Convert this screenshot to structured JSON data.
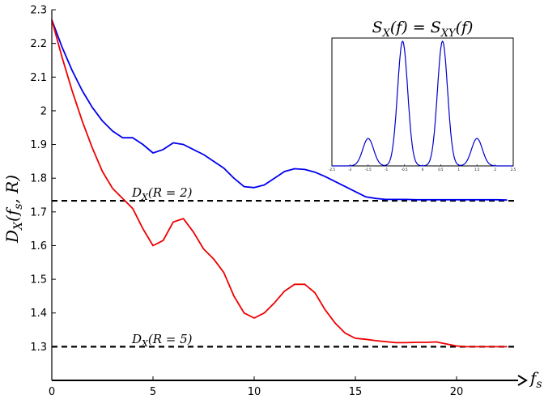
{
  "chart_data": {
    "type": "line",
    "main": {
      "xlabel": "f_s",
      "ylabel": "D_X(f_s, R)",
      "xlim": [
        0,
        22.8
      ],
      "ylim": [
        1.2,
        2.3
      ],
      "xticks": [
        0,
        5,
        10,
        15,
        20
      ],
      "yticks": [
        1.3,
        1.4,
        1.5,
        1.6,
        1.7,
        1.8,
        1.9,
        2.0,
        2.1,
        2.2,
        2.3
      ],
      "series": [
        {
          "color": "#0000ee",
          "x": [
            0,
            0.5,
            1,
            1.5,
            2,
            2.5,
            3,
            3.5,
            4,
            4.5,
            5,
            5.5,
            6,
            6.5,
            7,
            7.5,
            8,
            8.5,
            9,
            9.5,
            10,
            10.5,
            11,
            11.5,
            12,
            12.5,
            13,
            13.5,
            14,
            14.5,
            15,
            15.5,
            16,
            16.5,
            17,
            17.5,
            18,
            18.5,
            19,
            19.5,
            20,
            20.5,
            21,
            21.5,
            22,
            22.5
          ],
          "y": [
            2.27,
            2.19,
            2.12,
            2.06,
            2.01,
            1.97,
            1.94,
            1.92,
            1.92,
            1.9,
            1.875,
            1.885,
            1.905,
            1.9,
            1.885,
            1.87,
            1.85,
            1.83,
            1.8,
            1.775,
            1.772,
            1.78,
            1.8,
            1.82,
            1.828,
            1.826,
            1.818,
            1.805,
            1.79,
            1.775,
            1.76,
            1.745,
            1.74,
            1.737,
            1.737,
            1.737,
            1.736,
            1.736,
            1.736,
            1.736,
            1.736,
            1.736,
            1.736,
            1.736,
            1.736,
            1.735
          ]
        },
        {
          "color": "#ee0000",
          "x": [
            0,
            0.5,
            1,
            1.5,
            2,
            2.5,
            3,
            3.5,
            4,
            4.5,
            5,
            5.5,
            6,
            6.5,
            7,
            7.5,
            8,
            8.5,
            9,
            9.5,
            10,
            10.5,
            11,
            11.5,
            12,
            12.5,
            13,
            13.5,
            14,
            14.5,
            15,
            15.5,
            16,
            16.5,
            17,
            17.5,
            18,
            18.5,
            19,
            19.5,
            20,
            20.5,
            21,
            21.5,
            22,
            22.5
          ],
          "y": [
            2.27,
            2.16,
            2.06,
            1.97,
            1.89,
            1.82,
            1.77,
            1.74,
            1.71,
            1.65,
            1.6,
            1.615,
            1.67,
            1.68,
            1.64,
            1.59,
            1.56,
            1.52,
            1.45,
            1.4,
            1.385,
            1.4,
            1.43,
            1.465,
            1.485,
            1.485,
            1.46,
            1.41,
            1.37,
            1.34,
            1.325,
            1.322,
            1.318,
            1.315,
            1.312,
            1.312,
            1.313,
            1.313,
            1.314,
            1.308,
            1.302,
            1.3,
            1.3,
            1.3,
            1.3,
            1.3
          ]
        }
      ],
      "hlines": [
        {
          "y": 1.733,
          "label": "D_X(R = 2)"
        },
        {
          "y": 1.3,
          "label": "D_X(R = 5)"
        }
      ]
    },
    "inset": {
      "title": "S_X(f) = S_XY(f)",
      "xlim": [
        -2.5,
        2.5
      ],
      "ylim": [
        0,
        1
      ],
      "xticks": [
        -2.5,
        -2,
        -1.5,
        -1,
        -0.5,
        0,
        0.5,
        1,
        1.5,
        2,
        2.5
      ],
      "xtick_labels": [
        "-2.5",
        "-2",
        "-1.5",
        "-1",
        "-0.5",
        "0",
        "0.5",
        "1",
        "1.5",
        "2",
        "2.5"
      ],
      "color": "#0000cc",
      "peaks": [
        {
          "x": -1.5,
          "height": 0.22,
          "width": 0.15
        },
        {
          "x": -0.55,
          "height": 1.0,
          "width": 0.14
        },
        {
          "x": 0.55,
          "height": 1.0,
          "width": 0.14
        },
        {
          "x": 1.5,
          "height": 0.22,
          "width": 0.15
        }
      ]
    }
  }
}
